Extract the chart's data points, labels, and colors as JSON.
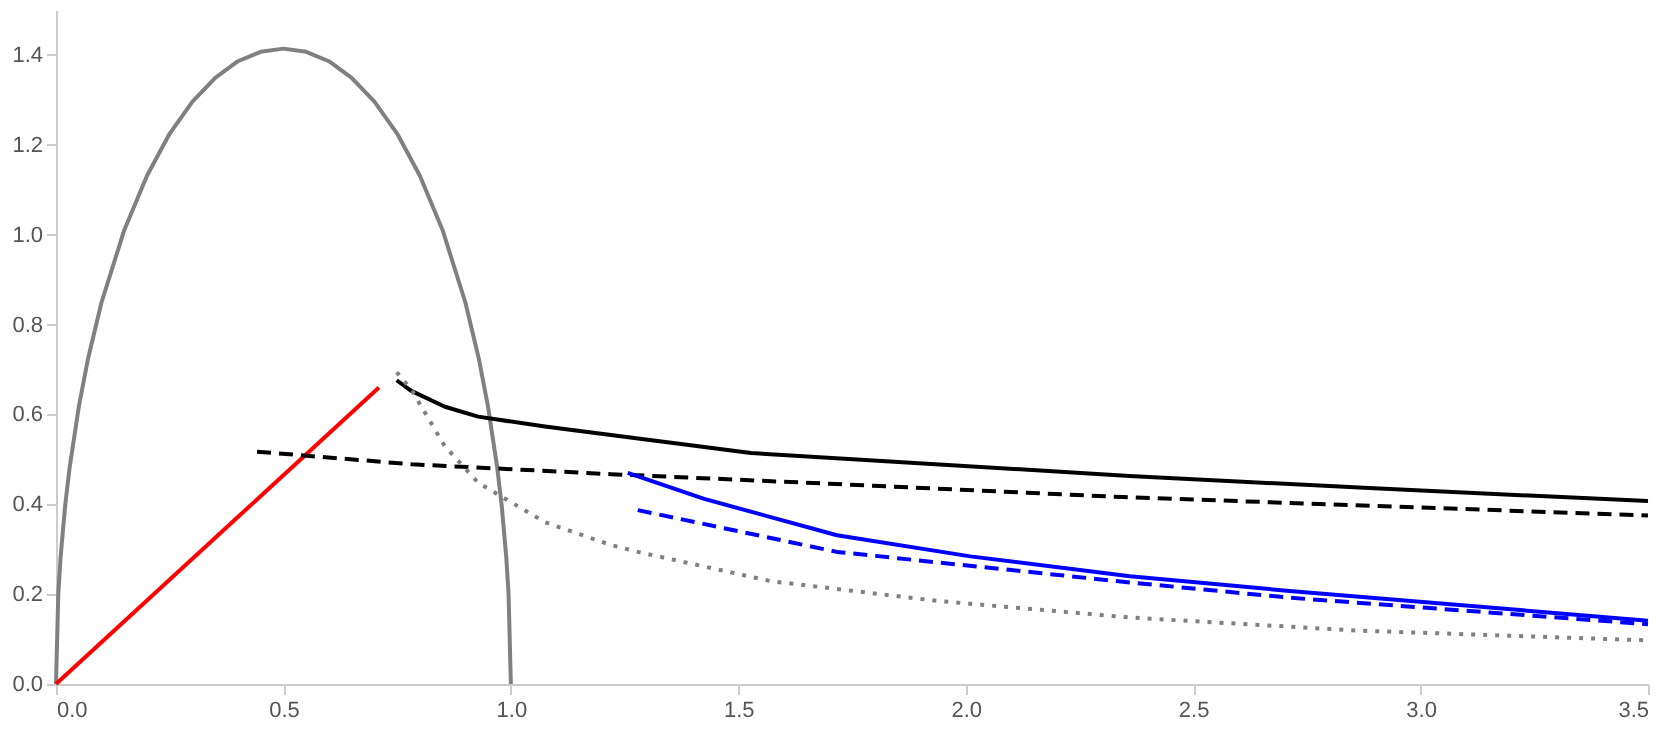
{
  "chart_data": {
    "type": "line",
    "xlim": [
      0,
      3.5
    ],
    "ylim": [
      0,
      1.5
    ],
    "xticks": [
      {
        "value": 0,
        "label": "0.0"
      },
      {
        "value": 0.5,
        "label": "0.5"
      },
      {
        "value": 1,
        "label": "1.0"
      },
      {
        "value": 1.5,
        "label": "1.5"
      },
      {
        "value": 2,
        "label": "2.0"
      },
      {
        "value": 2.5,
        "label": "2.5"
      },
      {
        "value": 3,
        "label": "3.0"
      },
      {
        "value": 3.5,
        "label": "3.5"
      }
    ],
    "yticks": [
      {
        "value": 0,
        "label": "0.0"
      },
      {
        "value": 0.2,
        "label": "0.2"
      },
      {
        "value": 0.4,
        "label": "0.4"
      },
      {
        "value": 0.6,
        "label": "0.6"
      },
      {
        "value": 0.8,
        "label": "0.8"
      },
      {
        "value": 1,
        "label": "1.0"
      },
      {
        "value": 1.2,
        "label": "1.2"
      },
      {
        "value": 1.4,
        "label": "1.4"
      }
    ],
    "grid": false,
    "marker": "none",
    "series": [
      {
        "color": "#808080",
        "line_style": "solid",
        "x": [
          0,
          0.005,
          0.01,
          0.02,
          0.03,
          0.05,
          0.07,
          0.1,
          0.15,
          0.2,
          0.25,
          0.3,
          0.35,
          0.4,
          0.45,
          0.5,
          0.55,
          0.6,
          0.65,
          0.7,
          0.75,
          0.8,
          0.85,
          0.9,
          0.93,
          0.95,
          0.97,
          0.98,
          0.99,
          0.995,
          1.0
        ],
        "values": [
          0,
          0.199,
          0.281,
          0.396,
          0.482,
          0.616,
          0.722,
          0.849,
          1.01,
          1.131,
          1.225,
          1.296,
          1.349,
          1.386,
          1.407,
          1.414,
          1.407,
          1.386,
          1.349,
          1.296,
          1.225,
          1.131,
          1.01,
          0.849,
          0.722,
          0.616,
          0.482,
          0.396,
          0.281,
          0.199,
          0
        ]
      },
      {
        "color": "#ff0000",
        "line_style": "solid",
        "x": [
          0,
          0.71
        ],
        "values": [
          0,
          0.66
        ]
      },
      {
        "color": "#000000",
        "line_style": "solid",
        "x": [
          0.749,
          0.78,
          0.855,
          0.928,
          1.075,
          1.22,
          1.528,
          2.36,
          2.887,
          3.5
        ],
        "values": [
          0.676,
          0.653,
          0.617,
          0.595,
          0.573,
          0.554,
          0.514,
          0.463,
          0.436,
          0.407
        ]
      },
      {
        "color": "#000000",
        "line_style": "dashed",
        "x": [
          0.442,
          0.782,
          1.22,
          1.716,
          2.346,
          3.5
        ],
        "values": [
          0.517,
          0.489,
          0.467,
          0.445,
          0.416,
          0.375
        ]
      },
      {
        "color": "#808080",
        "line_style": "dotted",
        "x": [
          0.749,
          0.782,
          0.855,
          0.928,
          1.075,
          1.221,
          1.279,
          1.571,
          1.937,
          2.361,
          2.858,
          3.5
        ],
        "values": [
          0.694,
          0.654,
          0.529,
          0.448,
          0.36,
          0.309,
          0.294,
          0.229,
          0.185,
          0.148,
          0.119,
          0.097
        ]
      },
      {
        "color": "#0000ff",
        "line_style": "solid",
        "x": [
          1.257,
          1.425,
          1.717,
          2.01,
          2.361,
          2.712,
          3.5
        ],
        "values": [
          0.47,
          0.412,
          0.331,
          0.284,
          0.24,
          0.207,
          0.141
        ]
      },
      {
        "color": "#0000ff",
        "line_style": "dashed",
        "x": [
          1.279,
          1.717,
          2.361,
          2.712,
          3.5
        ],
        "values": [
          0.387,
          0.294,
          0.226,
          0.192,
          0.133
        ]
      }
    ]
  }
}
